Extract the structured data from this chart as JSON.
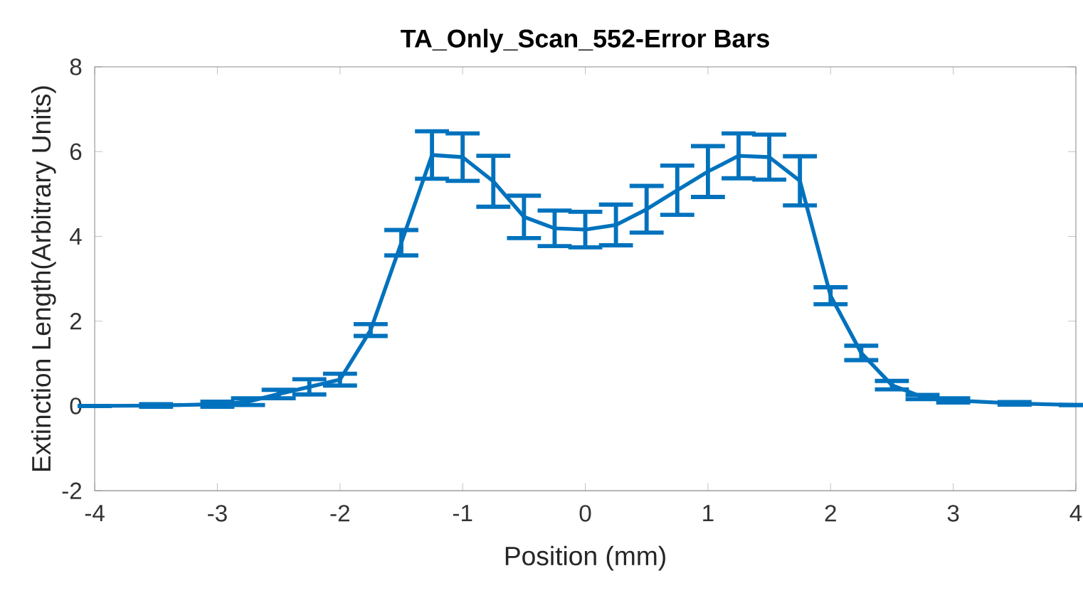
{
  "chart_data": {
    "type": "line",
    "title": "TA_Only_Scan_552-Error Bars",
    "xlabel": "Position (mm)",
    "ylabel": "Extinction Length(Arbitrary Units)",
    "x": [
      -4,
      -3.5,
      -3,
      -2.75,
      -2.5,
      -2.25,
      -2,
      -1.75,
      -1.5,
      -1.25,
      -1,
      -0.75,
      -0.5,
      -0.25,
      0,
      0.25,
      0.5,
      0.75,
      1,
      1.25,
      1.5,
      1.75,
      2,
      2.25,
      2.5,
      2.75,
      3,
      3.5,
      4
    ],
    "series": [
      {
        "color": "#0072bd",
        "values": [
          0,
          0.01,
          0.04,
          0.1,
          0.28,
          0.45,
          0.62,
          1.79,
          3.85,
          5.92,
          5.87,
          5.3,
          4.46,
          4.19,
          4.16,
          4.27,
          4.64,
          5.09,
          5.53,
          5.9,
          5.87,
          5.31,
          2.6,
          1.25,
          0.49,
          0.21,
          0.13,
          0.06,
          0.02
        ],
        "errors": [
          null,
          0.03,
          0.06,
          0.08,
          0.1,
          0.18,
          0.14,
          0.14,
          0.3,
          0.56,
          0.56,
          0.6,
          0.5,
          0.42,
          0.42,
          0.48,
          0.55,
          0.58,
          0.6,
          0.53,
          0.53,
          0.58,
          0.2,
          0.17,
          0.1,
          0.05,
          0.05,
          0.03,
          null
        ]
      }
    ],
    "xlim": [
      -4,
      4
    ],
    "ylim": [
      -2,
      8
    ],
    "xticks": [
      -4,
      -3,
      -2,
      -1,
      0,
      1,
      2,
      3,
      4
    ],
    "yticks": [
      -2,
      0,
      2,
      4,
      6,
      8
    ],
    "grid": false,
    "marker": "none",
    "line_style": "solid"
  }
}
